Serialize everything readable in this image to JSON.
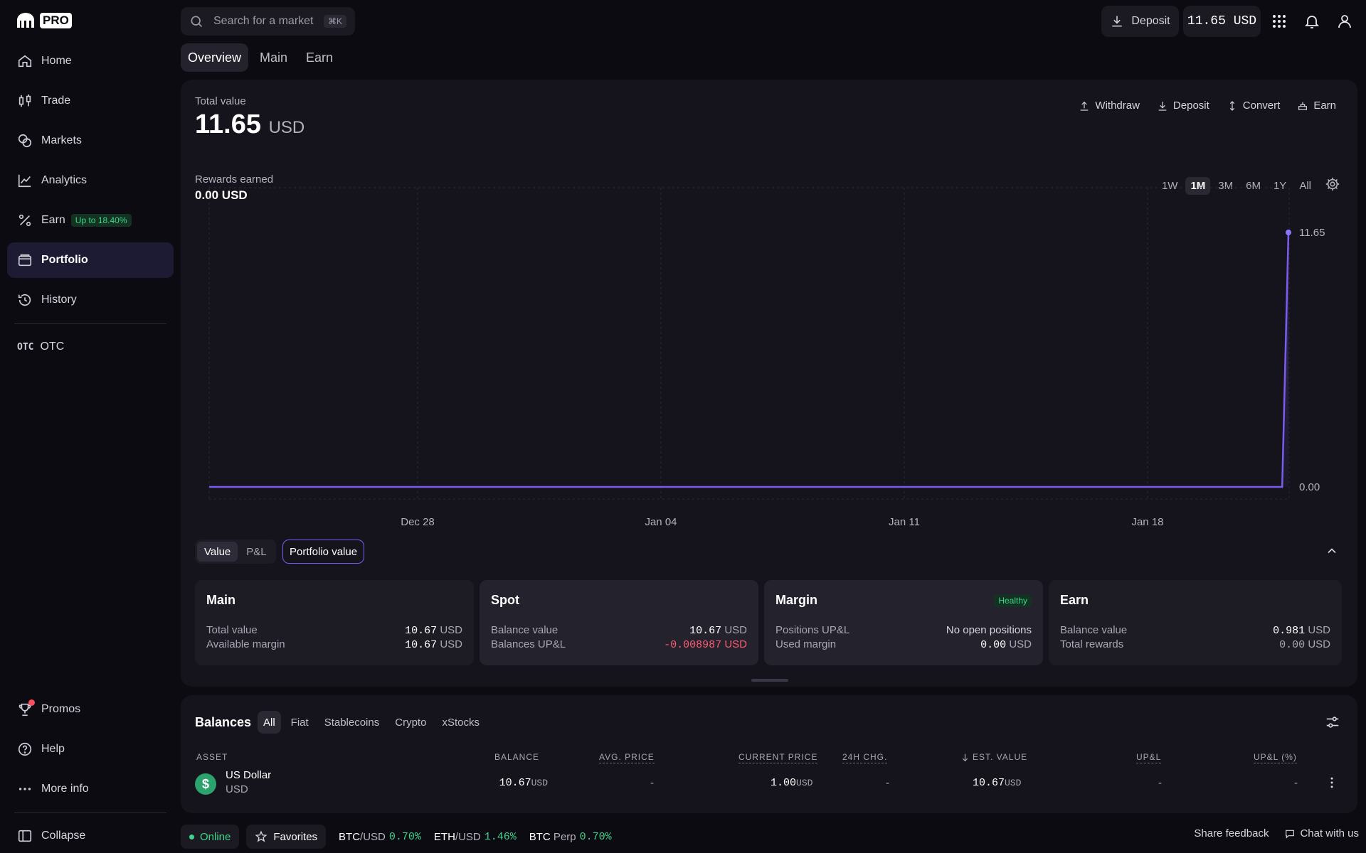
{
  "brand": {
    "pro_label": "PRO"
  },
  "sidebar": {
    "items": [
      {
        "label": "Home"
      },
      {
        "label": "Trade"
      },
      {
        "label": "Markets"
      },
      {
        "label": "Analytics"
      },
      {
        "label": "Earn",
        "badge": "Up to 18.40%"
      },
      {
        "label": "Portfolio"
      },
      {
        "label": "History"
      },
      {
        "label": "OTC",
        "tag": "OTC"
      }
    ],
    "bottom": [
      {
        "label": "Promos"
      },
      {
        "label": "Help"
      },
      {
        "label": "More info"
      },
      {
        "label": "Collapse"
      }
    ]
  },
  "search": {
    "placeholder": "Search for a market",
    "shortcut": "⌘K"
  },
  "topbar": {
    "deposit_label": "Deposit",
    "balance": "11.65 USD"
  },
  "tabs": [
    "Overview",
    "Main",
    "Earn"
  ],
  "overview": {
    "total_value_label": "Total value",
    "total_value": "11.65",
    "total_value_unit": "USD",
    "actions": [
      "Withdraw",
      "Deposit",
      "Convert",
      "Earn"
    ],
    "rewards_label": "Rewards earned",
    "rewards_value": "0.00 USD",
    "ranges": [
      "1W",
      "1M",
      "3M",
      "6M",
      "1Y",
      "All"
    ],
    "selected_range": "1M"
  },
  "chart_data": {
    "type": "area",
    "x_ticks": [
      "Dec 28",
      "Jan 04",
      "Jan 11",
      "Jan 18"
    ],
    "y_tick_labels": [
      "11.65",
      "0.00"
    ],
    "series": [
      {
        "values": [
          0,
          0,
          0,
          0,
          0,
          0,
          0,
          0,
          0,
          0,
          0,
          0,
          0,
          0,
          0,
          0,
          0,
          0,
          0,
          0,
          0,
          0,
          0,
          0,
          0,
          0,
          0,
          0,
          0,
          0,
          0,
          0,
          0,
          0,
          0,
          0,
          0,
          0,
          0,
          0,
          0,
          0,
          0,
          0,
          0,
          0,
          0,
          0,
          0,
          0,
          0,
          0,
          0,
          0,
          0,
          0,
          0,
          0,
          0,
          0,
          0,
          0,
          0,
          0,
          0,
          0,
          0,
          0,
          0,
          0,
          0,
          0,
          0,
          0,
          0,
          0,
          0,
          0,
          0,
          0,
          0,
          0,
          0,
          0,
          0,
          0,
          0,
          0,
          0,
          0,
          0,
          0,
          0,
          0,
          0,
          0,
          0,
          0,
          0,
          0,
          0,
          0,
          0,
          0,
          0,
          0,
          0,
          0,
          0,
          0,
          0,
          0,
          0,
          0,
          0,
          0,
          0,
          0,
          0,
          0,
          0,
          0,
          0,
          0,
          0,
          0,
          0,
          0,
          0,
          0,
          0,
          0,
          0,
          0,
          0,
          0,
          0,
          0,
          0,
          0,
          0,
          0,
          0,
          0,
          0,
          0,
          0,
          0,
          0,
          0,
          0,
          0,
          0,
          0,
          0,
          0,
          0,
          0,
          0,
          0,
          0,
          0,
          0,
          0,
          0,
          0,
          0,
          0,
          0,
          0,
          0,
          0,
          11.65
        ]
      }
    ],
    "ylim": [
      0,
      11.65
    ],
    "grid": true
  },
  "chart_controls": {
    "value_label": "Value",
    "pnl_label": "P&L",
    "portfolio_value_label": "Portfolio value"
  },
  "summary": {
    "main": {
      "title": "Main",
      "rows": [
        {
          "label": "Total value",
          "value": "10.67",
          "unit": "USD"
        },
        {
          "label": "Available margin",
          "value": "10.67",
          "unit": "USD"
        }
      ]
    },
    "spot": {
      "title": "Spot",
      "rows": [
        {
          "label": "Balance value",
          "value": "10.67",
          "unit": "USD"
        },
        {
          "label": "Balances UP&L",
          "value": "-0.008987",
          "unit": "USD"
        }
      ]
    },
    "margin": {
      "title": "Margin",
      "status": "Healthy",
      "rows": [
        {
          "label": "Positions UP&L",
          "value": "No open positions",
          "unit": ""
        },
        {
          "label": "Used margin",
          "value": "0.00",
          "unit": "USD"
        }
      ]
    },
    "earn": {
      "title": "Earn",
      "rows": [
        {
          "label": "Balance value",
          "value": "0.981",
          "unit": "USD"
        },
        {
          "label": "Total rewards",
          "value": "0.00",
          "unit": "USD"
        }
      ]
    }
  },
  "balances": {
    "title": "Balances",
    "filters": [
      "All",
      "Fiat",
      "Stablecoins",
      "Crypto",
      "xStocks"
    ],
    "columns": [
      "ASSET",
      "BALANCE",
      "AVG. PRICE",
      "CURRENT PRICE",
      "24H CHG.",
      "EST. VALUE",
      "UP&L",
      "UP&L (%)"
    ],
    "rows": [
      {
        "name": "US Dollar",
        "code": "USD",
        "balance": "10.67",
        "balance_unit": "USD",
        "avg_price": "-",
        "current_price": "1.00",
        "current_price_unit": "USD",
        "change_24h": "-",
        "est_value": "10.67",
        "est_value_unit": "USD",
        "upl": "-",
        "upl_pct": "-"
      }
    ]
  },
  "footer": {
    "status": "Online",
    "favorites": "Favorites",
    "tickers": [
      {
        "pair": "BTC/USD",
        "base": "BTC",
        "quote": "/USD",
        "change": "0.70%"
      },
      {
        "pair": "ETH/USD",
        "base": "ETH",
        "quote": "/USD",
        "change": "1.46%"
      },
      {
        "pair": "BTC Perp",
        "base": "BTC",
        "quote": " Perp",
        "change": "0.70%"
      }
    ],
    "share_feedback": "Share feedback",
    "chat": "Chat with us"
  }
}
